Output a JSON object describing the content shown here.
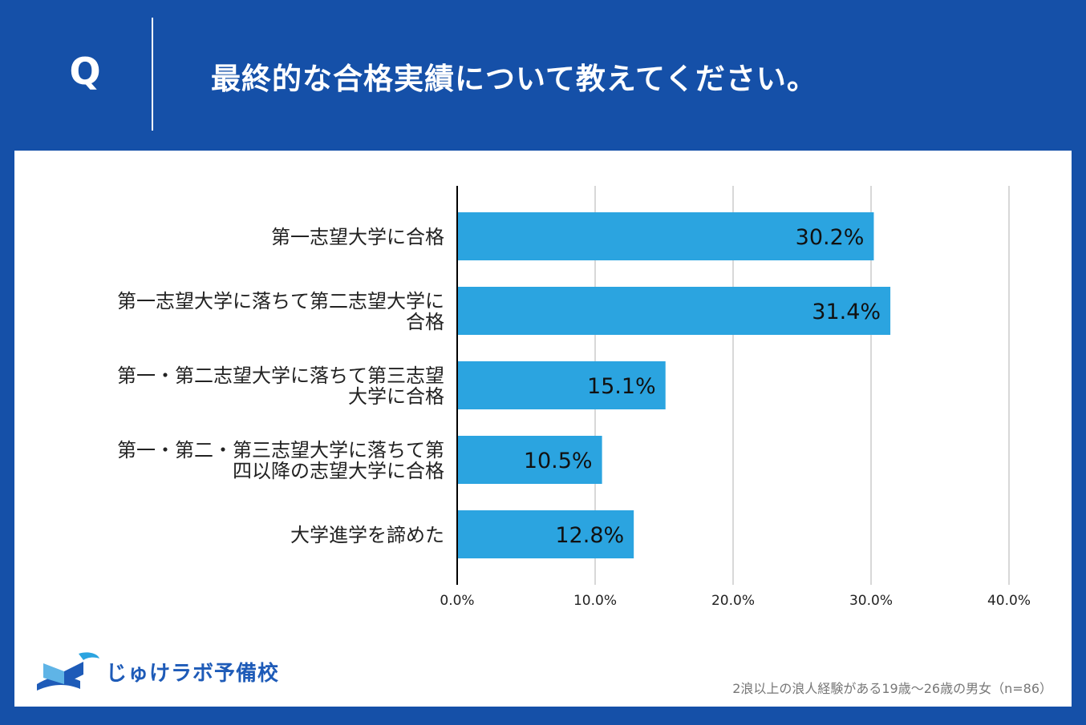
{
  "question": {
    "label": "Q",
    "text": "最終的な合格実績について教えてください。"
  },
  "brand": {
    "name": "じゅけラボ予備校",
    "icon": "open-book-icon"
  },
  "footnote": "2浪以上の浪人経験がある19歳～26歳の男女（n=86）",
  "colors": {
    "background": "#1550a8",
    "bar": "#2ba4e0",
    "grid": "#cccccc",
    "axis": "#000000"
  },
  "chart_data": {
    "type": "bar",
    "orientation": "horizontal",
    "categories": [
      [
        "第一志望大学に合格"
      ],
      [
        "第一志望大学に落ちて第二志望大学に",
        "合格"
      ],
      [
        "第一・第二志望大学に落ちて第三志望",
        "大学に合格"
      ],
      [
        "第一・第二・第三志望大学に落ちて第",
        "四以降の志望大学に合格"
      ],
      [
        "大学進学を諦めた"
      ]
    ],
    "values": [
      30.2,
      31.4,
      15.1,
      10.5,
      12.8
    ],
    "value_labels": [
      "30.2%",
      "31.4%",
      "15.1%",
      "10.5%",
      "12.8%"
    ],
    "xlim": [
      0,
      40
    ],
    "xticks": [
      0,
      10,
      20,
      30,
      40
    ],
    "xtick_labels": [
      "0.0%",
      "10.0%",
      "20.0%",
      "30.0%",
      "40.0%"
    ],
    "grid": true,
    "title": "",
    "xlabel": "",
    "ylabel": ""
  }
}
